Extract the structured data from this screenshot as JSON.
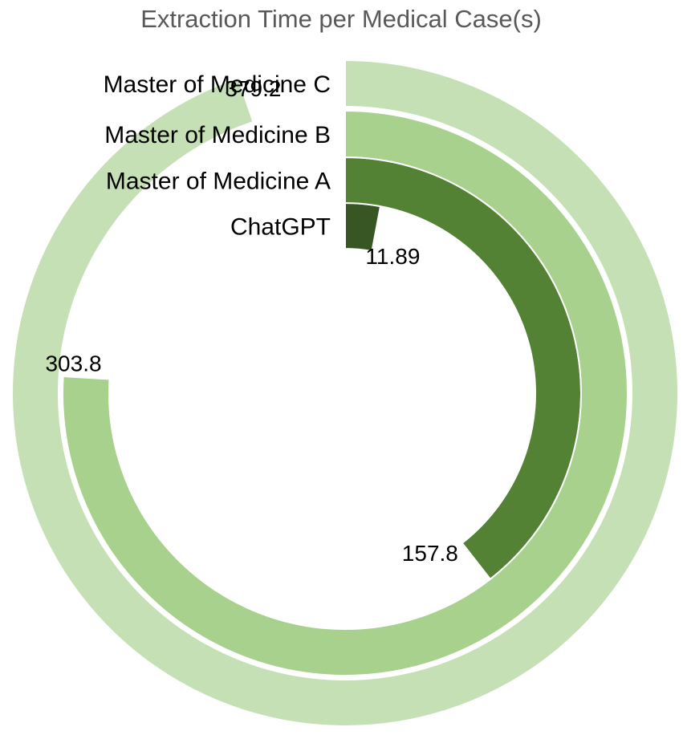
{
  "chart_data": {
    "type": "radial-bar",
    "title": "Extraction Time per Medical Case(s)",
    "max_value": 400,
    "series": [
      {
        "name": "ChatGPT",
        "value": 11.89,
        "value_label": "11.89",
        "color": "#375623"
      },
      {
        "name": "Master of Medicine A",
        "value": 157.8,
        "value_label": "157.8",
        "color": "#548235"
      },
      {
        "name": "Master of Medicine B",
        "value": 303.8,
        "value_label": "303.8",
        "color": "#a9d18e"
      },
      {
        "name": "Master of Medicine C",
        "value": 379.2,
        "value_label": "379.2",
        "color": "#c5e0b4"
      }
    ]
  }
}
